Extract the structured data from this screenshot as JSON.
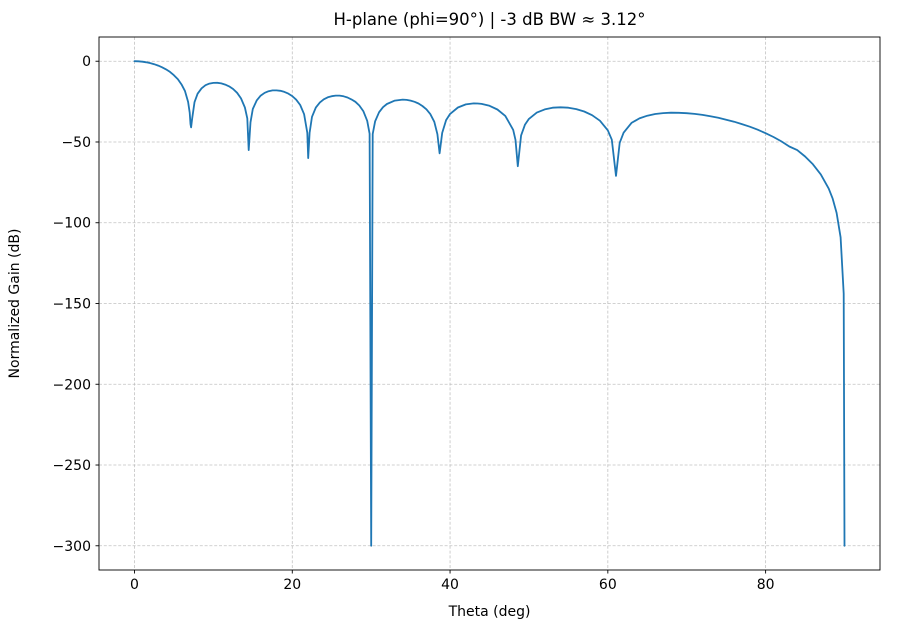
{
  "chart_data": {
    "type": "line",
    "title": "H-plane (phi=90°) | -3 dB BW ≈ 3.12°",
    "xlabel": "Theta (deg)",
    "ylabel": "Normalized Gain (dB)",
    "xlim": [
      -4.5,
      94.5
    ],
    "ylim": [
      -315,
      15
    ],
    "xticks": [
      0,
      20,
      40,
      60,
      80
    ],
    "yticks": [
      0,
      -50,
      -100,
      -150,
      -200,
      -250,
      -300
    ],
    "grid": true,
    "grid_linestyle": "dashed",
    "grid_color": "#b8b8b8",
    "line_color": "#1f77b4",
    "legend": "none",
    "series": [
      {
        "name": "H-plane normalized gain",
        "x": [
          0,
          0.5,
          1,
          1.5,
          2,
          2.5,
          3,
          3.5,
          4,
          4.5,
          5,
          5.5,
          6,
          6.4,
          6.8,
          7,
          7.1,
          7.18,
          7.3,
          7.6,
          8,
          8.5,
          9,
          9.5,
          10,
          10.5,
          11,
          11.5,
          12,
          12.5,
          13,
          13.5,
          14,
          14.3,
          14.48,
          14.7,
          15,
          15.5,
          16,
          16.5,
          17,
          17.5,
          18,
          18.5,
          19,
          19.5,
          20,
          20.5,
          21,
          21.5,
          21.9,
          22.02,
          22.2,
          22.5,
          23,
          23.5,
          24,
          24.5,
          25,
          25.5,
          26,
          26.5,
          27,
          27.5,
          28,
          28.5,
          29,
          29.5,
          29.8,
          30,
          30.2,
          30.5,
          31,
          31.5,
          32,
          33,
          34,
          34.5,
          35,
          35.5,
          36,
          36.5,
          37,
          37.5,
          38,
          38.4,
          38.68,
          39,
          39.5,
          40,
          41,
          42,
          43,
          43.5,
          44,
          45,
          46,
          47,
          48,
          48.3,
          48.59,
          49,
          49.5,
          50,
          51,
          52,
          53,
          54,
          55,
          56,
          57,
          58,
          59,
          60,
          60.5,
          61.04,
          61.5,
          62,
          63,
          64,
          65,
          66,
          67,
          68,
          69,
          70,
          71,
          72,
          73,
          74,
          75,
          76,
          77,
          78,
          79,
          80,
          81,
          82,
          83,
          84,
          85,
          86,
          87,
          88,
          88.5,
          89,
          89.5,
          89.9,
          90
        ],
        "y": [
          0,
          -0.07,
          -0.28,
          -0.64,
          -1.14,
          -1.82,
          -2.68,
          -3.73,
          -5.03,
          -6.63,
          -8.64,
          -11.15,
          -14.63,
          -18.5,
          -25.16,
          -31.8,
          -38.9,
          -41,
          -35.8,
          -25.35,
          -20.1,
          -16.77,
          -14.87,
          -13.87,
          -13.4,
          -13.37,
          -13.72,
          -14.44,
          -15.57,
          -17.21,
          -19.55,
          -23,
          -28.62,
          -35.4,
          -55,
          -37.8,
          -29.6,
          -24.18,
          -21.3,
          -19.57,
          -18.56,
          -18.08,
          -18.06,
          -18.33,
          -18.97,
          -20.03,
          -21.6,
          -23.8,
          -27.1,
          -32.8,
          -44.3,
          -60,
          -44.3,
          -34.4,
          -28.6,
          -25.5,
          -23.55,
          -22.36,
          -21.65,
          -21.27,
          -21.3,
          -21.69,
          -22.45,
          -23.64,
          -25.14,
          -27.44,
          -30.87,
          -36.9,
          -44.9,
          -300,
          -45.06,
          -37.25,
          -31.56,
          -28.46,
          -26.5,
          -24.38,
          -23.78,
          -23.94,
          -24.39,
          -25.13,
          -26.2,
          -27.69,
          -29.74,
          -32.72,
          -37.52,
          -45.2,
          -57,
          -44.4,
          -36.44,
          -32.63,
          -28.64,
          -26.76,
          -26.12,
          -26.16,
          -26.41,
          -27.6,
          -29.86,
          -33.84,
          -42.5,
          -48.7,
          -65,
          -45.95,
          -39.24,
          -35.7,
          -31.8,
          -29.8,
          -28.8,
          -28.51,
          -28.8,
          -29.66,
          -31.14,
          -33.4,
          -36.8,
          -42.78,
          -48.56,
          -71,
          -50.5,
          -44.25,
          -38.19,
          -35.41,
          -33.72,
          -32.69,
          -32.11,
          -31.86,
          -31.9,
          -32.16,
          -32.61,
          -33.26,
          -34.07,
          -35.05,
          -36.18,
          -37.46,
          -38.92,
          -40.56,
          -42.42,
          -44.57,
          -46.91,
          -49.63,
          -52.78,
          -55,
          -58.97,
          -63.81,
          -70.06,
          -78.86,
          -85.1,
          -93.9,
          -109,
          -143.9,
          -300
        ]
      }
    ]
  }
}
